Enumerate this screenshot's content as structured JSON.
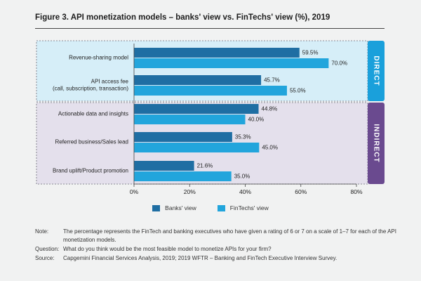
{
  "figure": {
    "title": "Figure 3. API monetization models – banks' view vs. FinTechs' view (%), 2019"
  },
  "chart_data": {
    "type": "bar",
    "orientation": "horizontal",
    "categories": [
      [
        "Revenue-sharing model"
      ],
      [
        "API access fee",
        "(call, subscription, transaction)"
      ],
      [
        "Actionable data and insights"
      ],
      [
        "Referred business/Sales lead"
      ],
      [
        "Brand uplift/Product promotion"
      ]
    ],
    "groups": [
      {
        "label": "DIRECT",
        "categories": [
          0,
          1
        ],
        "fill": "#d6eef8",
        "tab_color": "#1aa0db"
      },
      {
        "label": "INDIRECT",
        "categories": [
          2,
          3,
          4
        ],
        "fill": "#e4e0ec",
        "tab_color": "#6a4a8f"
      }
    ],
    "series": [
      {
        "name": "Banks' view",
        "values": [
          59.5,
          45.7,
          44.8,
          35.3,
          21.6
        ],
        "color": "#1f6ea3"
      },
      {
        "name": "FinTechs' view",
        "values": [
          70.0,
          55.0,
          40.0,
          45.0,
          35.0
        ],
        "color": "#22a5dc"
      }
    ],
    "value_labels": [
      [
        "59.5%",
        "45.7%",
        "44.8%",
        "35.3%",
        "21.6%"
      ],
      [
        "70.0%",
        "55.0%",
        "40.0%",
        "45.0%",
        "35.0%"
      ]
    ],
    "xlim": [
      0,
      80
    ],
    "xticks": [
      0,
      20,
      40,
      60,
      80
    ],
    "xtick_labels": [
      "0%",
      "20%",
      "40%",
      "60%",
      "80%"
    ],
    "legend_position": "bottom-center",
    "grid": false
  },
  "notes": [
    {
      "label": "Note:",
      "text": "The percentage represents the FinTech and banking executives who have given a rating of 6 or 7 on a scale of 1–7 for each of the API monetization models."
    },
    {
      "label": "Question:",
      "text": "What do you think would be the most feasible model to monetize APIs for your firm?"
    },
    {
      "label": "Source:",
      "text": "Capgemini Financial Services Analysis, 2019; 2019 WFTR – Banking and FinTech Executive Interview Survey."
    }
  ]
}
